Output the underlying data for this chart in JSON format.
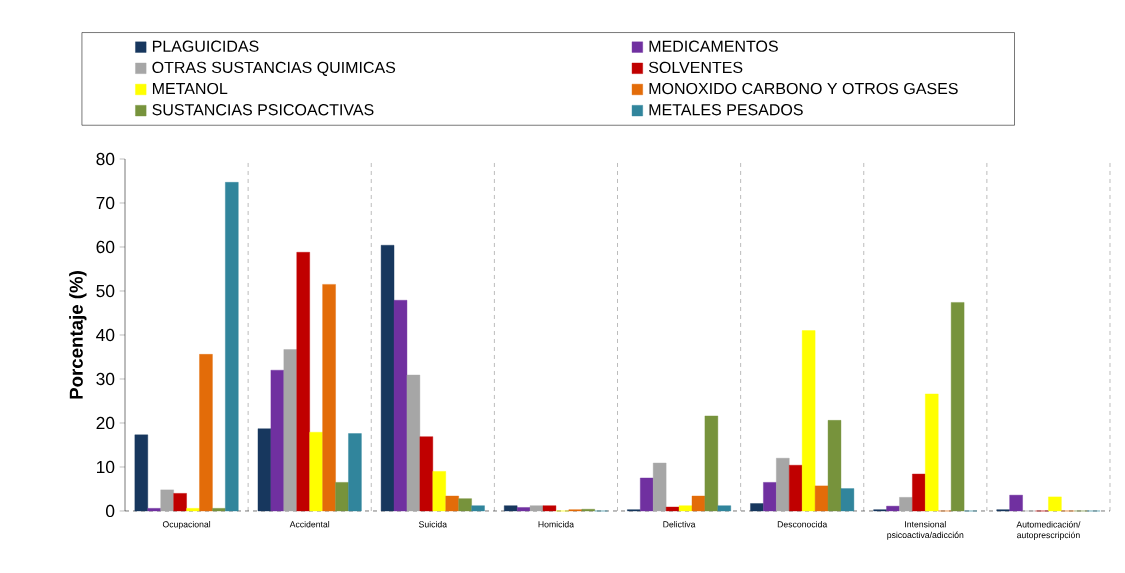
{
  "chart_data": {
    "type": "bar",
    "ylabel": "Porcentaje (%)",
    "categories": [
      "Ocupacional",
      "Accidental",
      "Suicida",
      "Homicida",
      "Delictiva",
      "Desconocida",
      "Intensional psicoactiva/adicción",
      "Automedicación/ autoprescripción"
    ],
    "series": [
      {
        "name": "PLAGUICIDAS",
        "color": "#17375e",
        "values": [
          17.3,
          18.7,
          60.4,
          1.2,
          0.3,
          1.7,
          0.3,
          0.3
        ]
      },
      {
        "name": "MEDICAMENTOS",
        "color": "#7030a0",
        "values": [
          0.6,
          32,
          47.9,
          0.8,
          7.5,
          6.5,
          1.1,
          3.6
        ]
      },
      {
        "name": "OTRAS SUSTANCIAS QUIMICAS",
        "color": "#a6a6a6",
        "values": [
          4.8,
          36.7,
          30.9,
          1.2,
          10.9,
          12,
          3.1,
          0
        ]
      },
      {
        "name": "SOLVENTES",
        "color": "#c00000",
        "values": [
          4,
          58.8,
          16.9,
          1.2,
          0.9,
          10.4,
          8.4,
          0
        ]
      },
      {
        "name": "METANOL",
        "color": "#ffff00",
        "values": [
          0.6,
          17.9,
          9,
          0,
          1.2,
          41,
          26.6,
          3.2
        ]
      },
      {
        "name": "MONOXIDO CARBONO Y OTROS GASES",
        "color": "#e36c09",
        "values": [
          35.6,
          51.5,
          3.4,
          0.3,
          3.4,
          5.7,
          0,
          0
        ]
      },
      {
        "name": "SUSTANCIAS PSICOACTIVAS",
        "color": "#77933c",
        "values": [
          0.6,
          6.5,
          2.8,
          0.4,
          21.6,
          20.6,
          47.4,
          0
        ]
      },
      {
        "name": "METALES PESADOS",
        "color": "#31859c",
        "values": [
          74.7,
          17.6,
          1.2,
          0,
          1.2,
          5.1,
          0,
          0
        ]
      }
    ],
    "ylim": [
      0,
      80
    ],
    "yticks": [
      0,
      10,
      20,
      30,
      40,
      50,
      60,
      70,
      80
    ],
    "grid": "x",
    "legend": "top"
  }
}
